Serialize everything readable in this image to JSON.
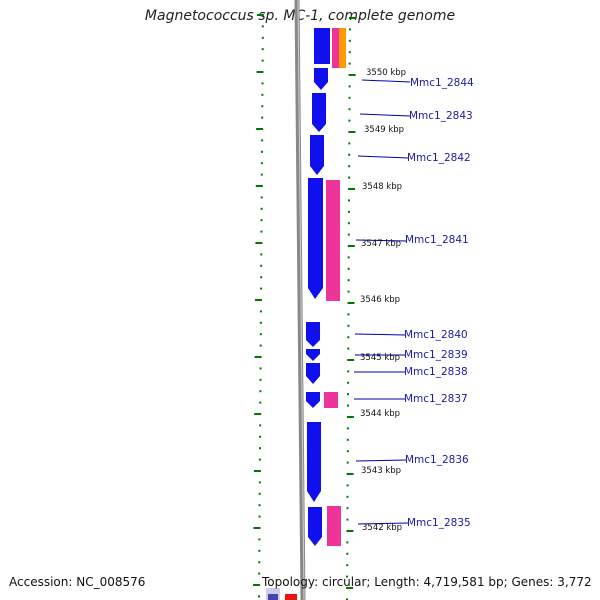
{
  "title": "Magnetococcus sp. MC-1, complete genome",
  "accession": "Accession: NC_008576",
  "topology": "Topology: circular; Length: 4,719,581 bp; Genes: 3,772",
  "colors": {
    "cds": "#1010ee",
    "feature": "#ee3399",
    "orange": "#ff9900",
    "backbone": "#888888",
    "tick": "#007700",
    "leader": "#0000aa",
    "gene_label": "#1a1aa6"
  },
  "kbp_ticks": [
    "3550 kbp",
    "3549 kbp",
    "3548 kbp",
    "3547 kbp",
    "3546 kbp",
    "3545 kbp",
    "3544 kbp",
    "3543 kbp",
    "3542 kbp"
  ],
  "genes": [
    "Mmc1_2844",
    "Mmc1_2843",
    "Mmc1_2842",
    "Mmc1_2841",
    "Mmc1_2840",
    "Mmc1_2839",
    "Mmc1_2838",
    "Mmc1_2837",
    "Mmc1_2836",
    "Mmc1_2835"
  ]
}
